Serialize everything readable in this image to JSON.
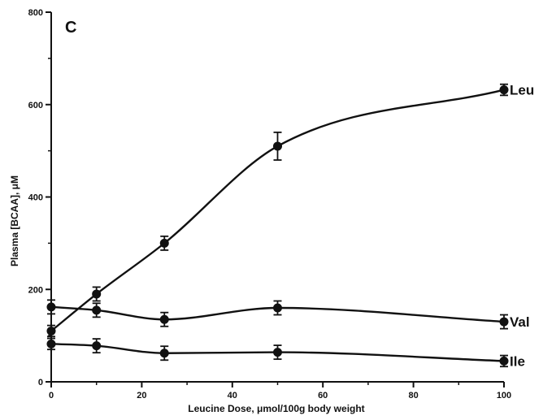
{
  "chart_data": {
    "type": "line",
    "panel_label": "C",
    "xlabel": "Leucine Dose, μmol/100g body weight",
    "ylabel": "Plasma [BCAA], μM",
    "xlim": [
      0,
      100
    ],
    "ylim": [
      0,
      800
    ],
    "x_ticks": [
      0,
      20,
      40,
      60,
      80,
      100
    ],
    "y_ticks": [
      0,
      200,
      400,
      600,
      800
    ],
    "grid": false,
    "x": [
      0,
      10,
      25,
      50,
      100
    ],
    "series": [
      {
        "name": "Leu",
        "values": [
          110,
          190,
          300,
          510,
          632
        ],
        "errors": [
          12,
          15,
          15,
          30,
          12
        ]
      },
      {
        "name": "Val",
        "values": [
          162,
          155,
          135,
          160,
          130
        ],
        "errors": [
          15,
          15,
          15,
          15,
          15
        ]
      },
      {
        "name": "Ile",
        "values": [
          82,
          78,
          62,
          64,
          45
        ],
        "errors": [
          12,
          15,
          15,
          15,
          12
        ]
      }
    ],
    "colors": {
      "line": "#111111",
      "marker": "#111111"
    }
  }
}
